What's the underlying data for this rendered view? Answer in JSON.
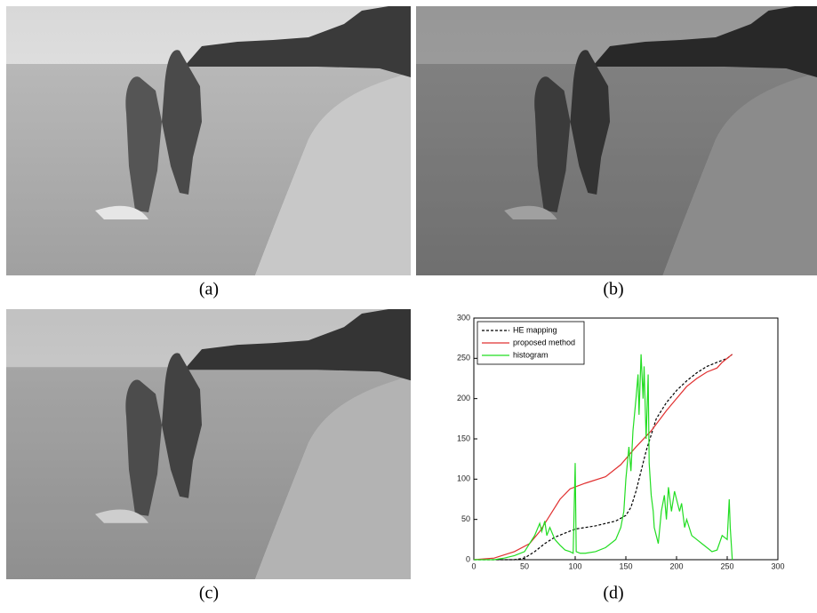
{
  "captions": [
    "(a)",
    "(b)",
    "(c)",
    "(d)"
  ],
  "chart_data": {
    "type": "line",
    "xlim": [
      0,
      300
    ],
    "xticks": [
      0,
      50,
      100,
      150,
      200,
      250,
      300
    ],
    "ylim": [
      0,
      300
    ],
    "yticks": [
      0,
      50,
      100,
      150,
      200,
      250,
      300
    ],
    "legend": "upper left",
    "series": [
      {
        "name": "HE mapping",
        "color": "#000000",
        "dash": true,
        "x": [
          0,
          40,
          50,
          60,
          70,
          80,
          90,
          100,
          110,
          120,
          130,
          140,
          150,
          155,
          160,
          165,
          170,
          175,
          180,
          190,
          200,
          210,
          220,
          230,
          240,
          250,
          255
        ],
        "values": [
          0,
          0,
          2,
          10,
          20,
          28,
          33,
          38,
          40,
          42,
          45,
          48,
          55,
          65,
          85,
          110,
          135,
          155,
          175,
          195,
          210,
          222,
          232,
          240,
          245,
          250,
          255
        ]
      },
      {
        "name": "proposed method",
        "color": "#e03030",
        "dash": false,
        "x": [
          0,
          20,
          40,
          55,
          65,
          75,
          85,
          95,
          110,
          130,
          145,
          160,
          175,
          190,
          200,
          210,
          220,
          230,
          240,
          245,
          255
        ],
        "values": [
          0,
          2,
          10,
          20,
          35,
          55,
          75,
          88,
          95,
          103,
          118,
          140,
          160,
          185,
          200,
          215,
          225,
          233,
          238,
          245,
          255
        ]
      },
      {
        "name": "histogram",
        "color": "#22dd22",
        "dash": false,
        "x": [
          0,
          20,
          30,
          40,
          50,
          55,
          60,
          65,
          67,
          70,
          72,
          75,
          80,
          85,
          90,
          95,
          98,
          100,
          101,
          105,
          110,
          120,
          130,
          140,
          145,
          148,
          150,
          153,
          155,
          157,
          160,
          162,
          163,
          165,
          167,
          168,
          170,
          172,
          173,
          175,
          177,
          178,
          180,
          182,
          185,
          188,
          190,
          192,
          195,
          198,
          200,
          203,
          205,
          208,
          210,
          215,
          220,
          225,
          230,
          235,
          240,
          245,
          250,
          252,
          253,
          255
        ],
        "values": [
          0,
          0,
          2,
          5,
          10,
          20,
          30,
          45,
          35,
          48,
          30,
          40,
          25,
          18,
          12,
          10,
          8,
          120,
          10,
          8,
          8,
          10,
          15,
          25,
          40,
          60,
          100,
          140,
          110,
          160,
          200,
          230,
          180,
          255,
          200,
          240,
          150,
          230,
          120,
          80,
          60,
          40,
          30,
          20,
          60,
          80,
          50,
          90,
          60,
          85,
          75,
          60,
          70,
          40,
          50,
          30,
          25,
          20,
          15,
          10,
          12,
          30,
          25,
          75,
          40,
          0
        ]
      }
    ]
  }
}
